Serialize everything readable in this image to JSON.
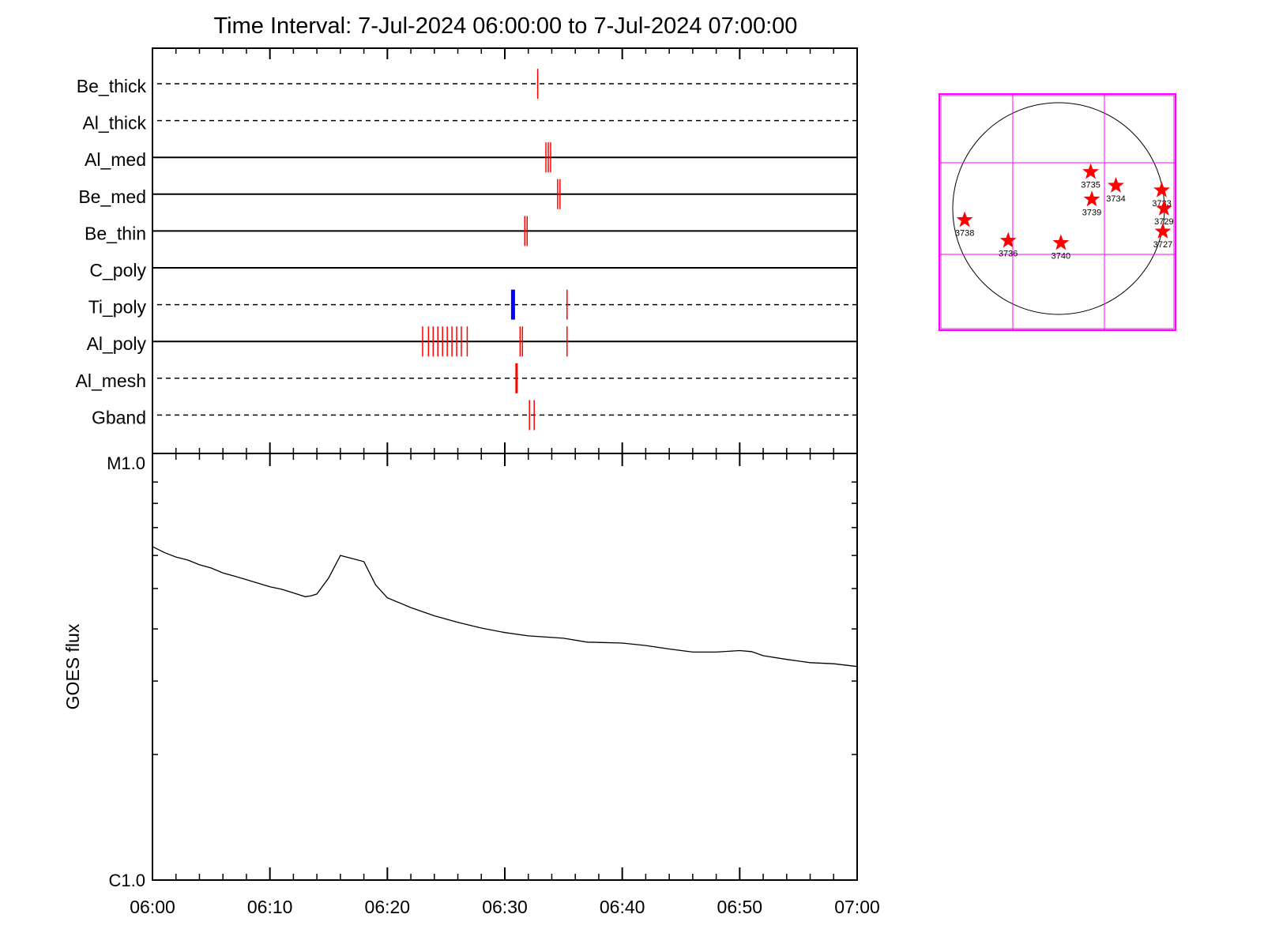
{
  "title": "Time Interval:  7-Jul-2024 06:00:00 to  7-Jul-2024 07:00:00",
  "colors": {
    "frame": "#000000",
    "event": "#ff0000",
    "event_alt": "#0000ff",
    "map": "#ff00ff",
    "star": "#ff0000"
  },
  "chart_data": [
    {
      "type": "timeline",
      "x_axis": {
        "range": [
          "06:00",
          "07:00"
        ],
        "unit": "minutes",
        "major_ticks": [
          0,
          10,
          20,
          30,
          40,
          50,
          60
        ],
        "minor_step": 2
      },
      "channels": [
        {
          "name": "Be_thick",
          "line": "dashed",
          "events": [
            {
              "t": 32.8,
              "color": "red",
              "width": "thin"
            }
          ]
        },
        {
          "name": "Al_thick",
          "line": "dashed",
          "events": []
        },
        {
          "name": "Al_med",
          "line": "solid",
          "events": [
            {
              "t": 33.5,
              "color": "red",
              "width": "thin"
            },
            {
              "t": 33.7,
              "color": "red",
              "width": "thin"
            },
            {
              "t": 33.9,
              "color": "red",
              "width": "thin"
            }
          ]
        },
        {
          "name": "Be_med",
          "line": "solid",
          "events": [
            {
              "t": 34.5,
              "color": "red",
              "width": "thin"
            },
            {
              "t": 34.7,
              "color": "red",
              "width": "thin"
            }
          ]
        },
        {
          "name": "Be_thin",
          "line": "solid",
          "events": [
            {
              "t": 31.7,
              "color": "red",
              "width": "thin"
            },
            {
              "t": 31.9,
              "color": "red",
              "width": "thin"
            }
          ]
        },
        {
          "name": "C_poly",
          "line": "solid",
          "events": []
        },
        {
          "name": "Ti_poly",
          "line": "dashed",
          "events": [
            {
              "t": 30.7,
              "color": "blue",
              "width": "thick"
            },
            {
              "t": 35.3,
              "color": "red",
              "width": "thin"
            }
          ]
        },
        {
          "name": "Al_poly",
          "line": "solid",
          "events": [
            {
              "t": 23.0,
              "color": "red",
              "width": "thin"
            },
            {
              "t": 23.5,
              "color": "red",
              "width": "thin"
            },
            {
              "t": 23.9,
              "color": "red",
              "width": "thin"
            },
            {
              "t": 24.3,
              "color": "red",
              "width": "thin"
            },
            {
              "t": 24.7,
              "color": "red",
              "width": "thin"
            },
            {
              "t": 25.1,
              "color": "red",
              "width": "thin"
            },
            {
              "t": 25.5,
              "color": "red",
              "width": "thin"
            },
            {
              "t": 25.9,
              "color": "red",
              "width": "thin"
            },
            {
              "t": 26.3,
              "color": "red",
              "width": "thin"
            },
            {
              "t": 26.8,
              "color": "red",
              "width": "thin"
            },
            {
              "t": 31.3,
              "color": "red",
              "width": "thin"
            },
            {
              "t": 31.5,
              "color": "red",
              "width": "thin"
            },
            {
              "t": 35.3,
              "color": "red",
              "width": "thin"
            }
          ]
        },
        {
          "name": "Al_mesh",
          "line": "dashed",
          "events": [
            {
              "t": 31.0,
              "color": "red",
              "width": "medium"
            }
          ]
        },
        {
          "name": "Gband",
          "line": "dashed",
          "events": [
            {
              "t": 32.1,
              "color": "red",
              "width": "thin"
            },
            {
              "t": 32.5,
              "color": "red",
              "width": "thin"
            }
          ]
        }
      ]
    },
    {
      "type": "line",
      "ylabel": "GOES flux",
      "y_scale": "log",
      "y_range": [
        1e-06,
        1e-05
      ],
      "y_labels": [
        {
          "value": 1e-05,
          "label": "M1.0"
        },
        {
          "value": 1e-06,
          "label": "C1.0"
        }
      ],
      "x_tick_labels": [
        "06:00",
        "06:10",
        "06:20",
        "06:30",
        "06:40",
        "06:50",
        "07:00"
      ],
      "series": [
        {
          "x": [
            0,
            1,
            2,
            3,
            4,
            5,
            6,
            7,
            8,
            9,
            10,
            11,
            12,
            13,
            13.5,
            14,
            15,
            16,
            17,
            18,
            19,
            20,
            22,
            24,
            26,
            28,
            30,
            32,
            35,
            37,
            40,
            42,
            44,
            46,
            48,
            50,
            51,
            52,
            54,
            56,
            58,
            60
          ],
          "y": [
            6.3e-06,
            6.1e-06,
            5.95e-06,
            5.85e-06,
            5.7e-06,
            5.6e-06,
            5.45e-06,
            5.35e-06,
            5.25e-06,
            5.15e-06,
            5.05e-06,
            4.98e-06,
            4.88e-06,
            4.78e-06,
            4.8e-06,
            4.85e-06,
            5.3e-06,
            6e-06,
            5.9e-06,
            5.8e-06,
            5.1e-06,
            4.75e-06,
            4.5e-06,
            4.3e-06,
            4.15e-06,
            4.02e-06,
            3.92e-06,
            3.85e-06,
            3.8e-06,
            3.72e-06,
            3.7e-06,
            3.65e-06,
            3.58e-06,
            3.52e-06,
            3.52e-06,
            3.55e-06,
            3.53e-06,
            3.45e-06,
            3.38e-06,
            3.32e-06,
            3.3e-06,
            3.25e-06
          ]
        }
      ]
    },
    {
      "type": "scatter",
      "range": [
        -1,
        1
      ],
      "grid_lines": [
        -0.4,
        0.4
      ],
      "stars": [
        {
          "label": "3735",
          "x": 0.28,
          "y": 0.32
        },
        {
          "label": "3734",
          "x": 0.5,
          "y": 0.2
        },
        {
          "label": "3739",
          "x": 0.29,
          "y": 0.08
        },
        {
          "label": "3733",
          "x": 0.9,
          "y": 0.16
        },
        {
          "label": "3729",
          "x": 0.92,
          "y": 0.0
        },
        {
          "label": "3727",
          "x": 0.91,
          "y": -0.2
        },
        {
          "label": "3738",
          "x": -0.82,
          "y": -0.1
        },
        {
          "label": "3736",
          "x": -0.44,
          "y": -0.28
        },
        {
          "label": "3740",
          "x": 0.02,
          "y": -0.3
        }
      ]
    }
  ]
}
